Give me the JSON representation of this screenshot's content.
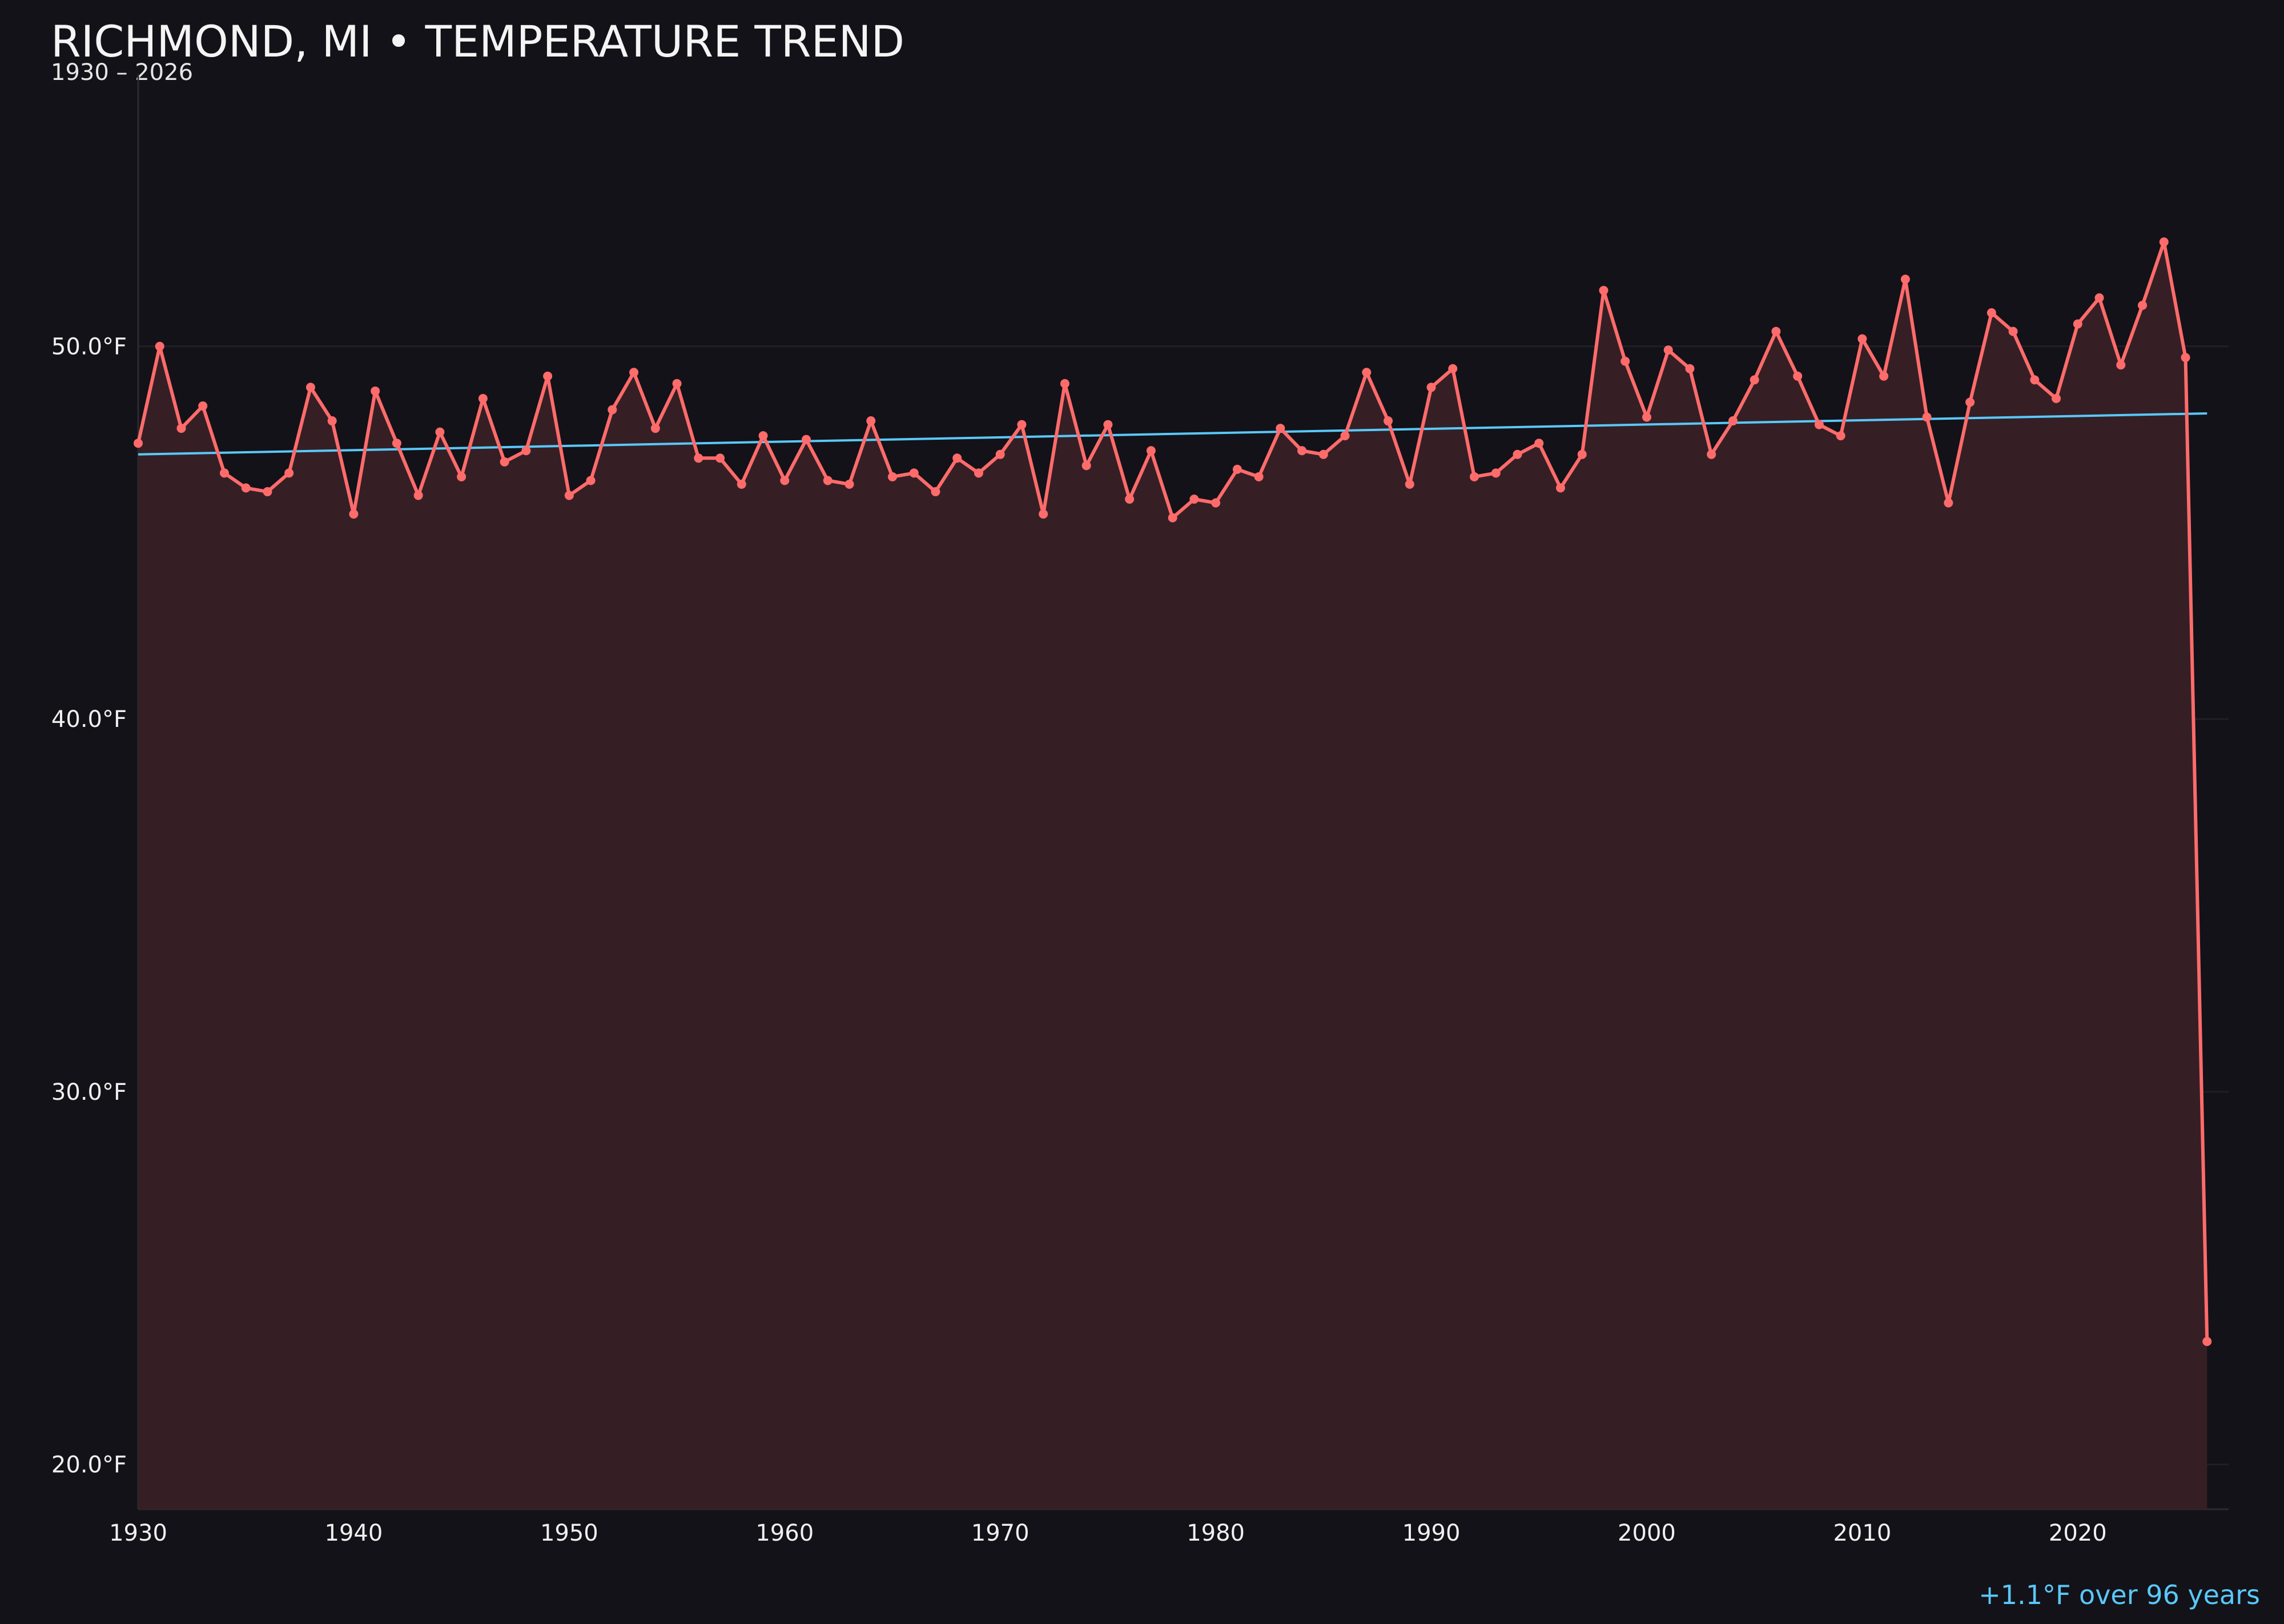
{
  "chart_data": {
    "type": "line",
    "title": "RICHMOND, MI • TEMPERATURE TREND",
    "subtitle": "1930 – 2026",
    "xlabel": "",
    "ylabel": "",
    "xlim": [
      1930,
      2027
    ],
    "ylim": [
      18.8,
      57.3
    ],
    "grid": true,
    "x_ticks": [
      "1930",
      "1940",
      "1950",
      "1960",
      "1970",
      "1980",
      "1990",
      "2000",
      "2010",
      "2020"
    ],
    "y_ticks": [
      {
        "value": 20,
        "label": "20.0°F"
      },
      {
        "value": 30,
        "label": "30.0°F"
      },
      {
        "value": 40,
        "label": "40.0°F"
      },
      {
        "value": 50,
        "label": "50.0°F"
      }
    ],
    "x": [
      1930,
      1931,
      1932,
      1933,
      1934,
      1935,
      1936,
      1937,
      1938,
      1939,
      1940,
      1941,
      1942,
      1943,
      1944,
      1945,
      1946,
      1947,
      1948,
      1949,
      1950,
      1951,
      1952,
      1953,
      1954,
      1955,
      1956,
      1957,
      1958,
      1959,
      1960,
      1961,
      1962,
      1963,
      1964,
      1965,
      1966,
      1967,
      1968,
      1969,
      1970,
      1971,
      1972,
      1973,
      1974,
      1975,
      1976,
      1977,
      1978,
      1979,
      1980,
      1981,
      1982,
      1983,
      1984,
      1985,
      1986,
      1987,
      1988,
      1989,
      1990,
      1991,
      1992,
      1993,
      1994,
      1995,
      1996,
      1997,
      1998,
      1999,
      2000,
      2001,
      2002,
      2003,
      2004,
      2005,
      2006,
      2007,
      2008,
      2009,
      2010,
      2011,
      2012,
      2013,
      2014,
      2015,
      2016,
      2017,
      2018,
      2019,
      2020,
      2021,
      2022,
      2023,
      2024,
      2025,
      2026
    ],
    "series": [
      {
        "values": [
          47.4,
          50.0,
          47.8,
          48.4,
          46.6,
          46.2,
          46.1,
          46.6,
          48.9,
          48.0,
          45.5,
          48.8,
          47.4,
          46.0,
          47.7,
          46.5,
          48.6,
          46.9,
          47.2,
          49.2,
          46.0,
          46.4,
          48.3,
          49.3,
          47.8,
          49.0,
          47.0,
          47.0,
          46.3,
          47.6,
          46.4,
          47.5,
          46.4,
          46.3,
          48.0,
          46.5,
          46.6,
          46.1,
          47.0,
          46.6,
          47.1,
          47.9,
          45.5,
          49.0,
          46.8,
          47.9,
          45.9,
          47.2,
          45.4,
          45.9,
          45.8,
          46.7,
          46.5,
          47.8,
          47.2,
          47.1,
          47.6,
          49.3,
          48.0,
          46.3,
          48.9,
          49.4,
          46.5,
          46.6,
          47.1,
          47.4,
          46.2,
          47.1,
          51.5,
          49.6,
          48.1,
          49.9,
          49.4,
          47.1,
          48.0,
          49.1,
          50.4,
          49.2,
          47.9,
          47.6,
          50.2,
          49.2,
          51.8,
          48.1,
          45.8,
          48.5,
          50.9,
          50.4,
          49.1,
          48.6,
          50.6,
          51.3,
          49.5,
          51.1,
          52.8,
          49.7,
          23.3
        ],
        "color": "#ff6b6b",
        "fill": "#351f25"
      }
    ],
    "trend": {
      "start": 47.1,
      "end": 48.2,
      "color": "#5ac8fa"
    },
    "annotation": "+1.1°F over 96 years"
  }
}
